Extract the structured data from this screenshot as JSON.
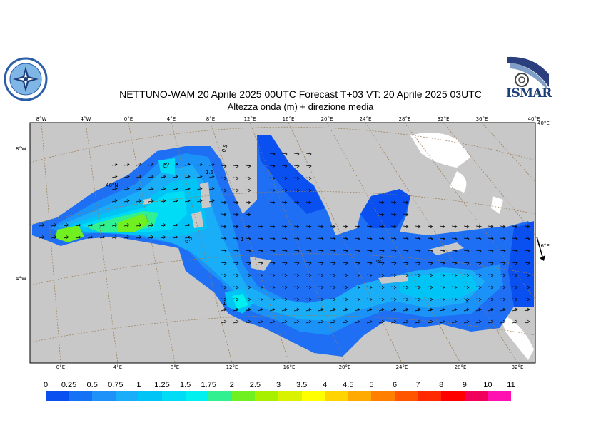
{
  "header": {
    "title_line1": "NETTUNO-WAM  20   Aprile  2025 00UTC Forecast T+03 VT: 20   Aprile  2025 03UTC",
    "title_line2": "Altezza onda (m) + direzione media"
  },
  "logos": {
    "left_name": "circular-seal-logo",
    "right_text": "ISMAR"
  },
  "map": {
    "top_lon_ticks": [
      "8°W",
      "4°W",
      "0°E",
      "4°E",
      "8°E",
      "12°E",
      "16°E",
      "20°E",
      "24°E",
      "28°E",
      "32°E",
      "36°E",
      "40°E"
    ],
    "bottom_lon_ticks": [
      "0°E",
      "4°E",
      "8°E",
      "12°E",
      "16°E",
      "20°E",
      "24°E",
      "28°E",
      "32°E"
    ],
    "left_lat_ticks": [
      "8°W",
      "4°W"
    ],
    "right_lat_ticks": [
      "40°E",
      "36°E"
    ],
    "inner_label": "40°N",
    "contour_labels": [
      "1.5",
      "1",
      "0.5",
      "1",
      "0.5",
      "0.5",
      "1",
      "1.5"
    ]
  },
  "legend": {
    "labels": [
      "0",
      "0.25",
      "0.5",
      "0.75",
      "1",
      "1.25",
      "1.5",
      "1.75",
      "2",
      "2.5",
      "3",
      "3.5",
      "4",
      "4.5",
      "5",
      "6",
      "7",
      "8",
      "9",
      "10",
      "11"
    ],
    "colors": [
      "#0a50f0",
      "#1672f5",
      "#1e92f8",
      "#1aaef8",
      "#00c4f5",
      "#00dcf5",
      "#00f0f0",
      "#30f090",
      "#70f020",
      "#a6f000",
      "#d8f200",
      "#ffff00",
      "#ffd400",
      "#ffaa00",
      "#ff8000",
      "#ff5500",
      "#ff2a00",
      "#ff0000",
      "#f0005a",
      "#ff10b0"
    ]
  }
}
